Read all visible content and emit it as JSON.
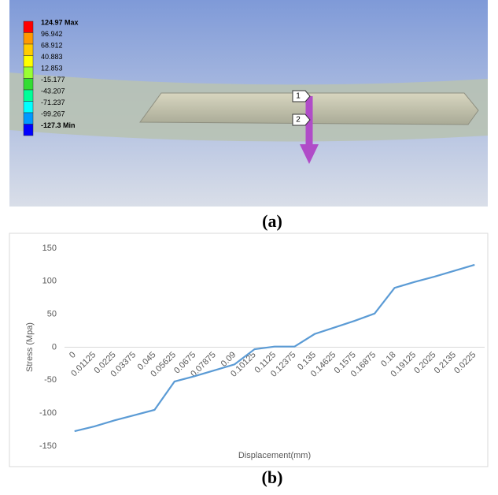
{
  "figure_a": {
    "legend": [
      {
        "label": "124.97 Max",
        "color": "#ff0000"
      },
      {
        "label": "96.942",
        "color": "#ff9900"
      },
      {
        "label": "68.912",
        "color": "#ffcc00"
      },
      {
        "label": "40.883",
        "color": "#ffff00"
      },
      {
        "label": "12.853",
        "color": "#99ff33"
      },
      {
        "label": "-15.177",
        "color": "#33dd33"
      },
      {
        "label": "-43.207",
        "color": "#00ff99"
      },
      {
        "label": "-71.237",
        "color": "#00ffff"
      },
      {
        "label": "-99.267",
        "color": "#0099ff"
      },
      {
        "label": "-127.3 Min",
        "color": "#0000ff"
      }
    ],
    "probes": [
      "1",
      "2"
    ]
  },
  "caption_a": "(a)",
  "chart_data": {
    "type": "line",
    "x_label": "Displacement(mm)",
    "y_label": "Stress (Mpa)",
    "categories": [
      "0",
      "0.01125",
      "0.0225",
      "0.03375",
      "0.045",
      "0.05625",
      "0.0675",
      "0.07875",
      "0.09",
      "0.10125",
      "0.1125",
      "0.12375",
      "0.135",
      "0.14625",
      "0.1575",
      "0.16875",
      "0.18",
      "0.19125",
      "0.2025",
      "0.2135",
      "0.0225"
    ],
    "series": [
      {
        "color": "#5b9bd5",
        "values": [
          -127.3,
          -120,
          -111,
          -103,
          -95,
          -52,
          -44,
          -35,
          -26,
          -3,
          1,
          1,
          20,
          30,
          40,
          51,
          90,
          99,
          107,
          116,
          125
        ]
      }
    ],
    "ylim": [
      -150,
      150
    ],
    "yticks": [
      -150,
      -100,
      -50,
      0,
      50,
      100,
      150
    ]
  },
  "caption_b": "(b)"
}
